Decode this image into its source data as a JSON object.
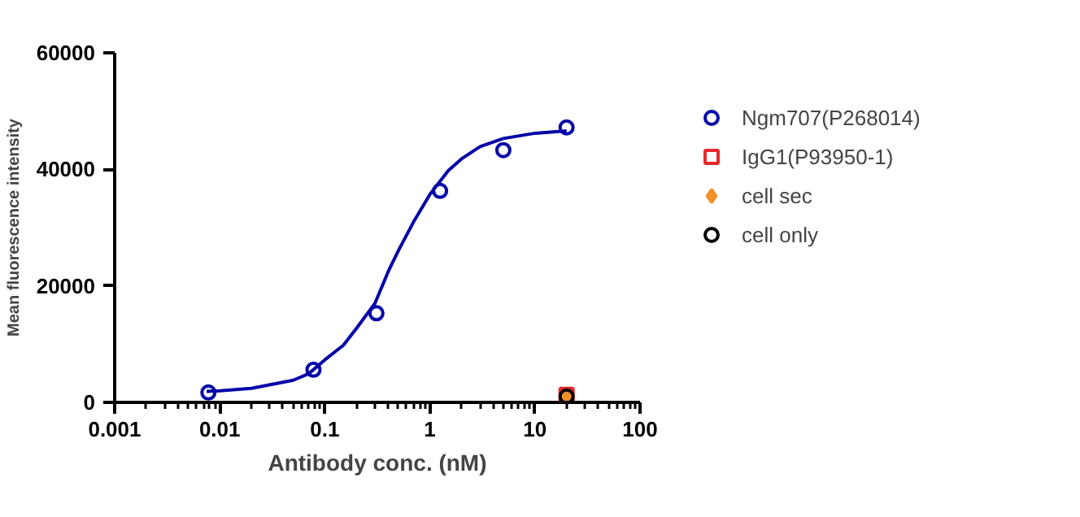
{
  "chart_data": {
    "type": "scatter",
    "xlabel": "Antibody conc. (nM)",
    "ylabel": "Mean fluorescence intensity",
    "log": "x",
    "xlim": [
      0.001,
      100
    ],
    "xticks": [
      0.001,
      0.01,
      0.1,
      1,
      10,
      100
    ],
    "ylim": [
      0,
      60000
    ],
    "yticks": [
      0,
      20000,
      40000,
      60000
    ],
    "grid": false,
    "legend": "right",
    "series": [
      {
        "type": "line",
        "color": "#0000a8",
        "line_style": "solid",
        "marker": "none",
        "x": [
          0.0075,
          0.01,
          0.02,
          0.05,
          0.07,
          0.1,
          0.15,
          0.2,
          0.3,
          0.4,
          0.5,
          0.7,
          1,
          1.5,
          2,
          3,
          5,
          10,
          20
        ],
        "values": [
          1900,
          2000,
          2400,
          3800,
          4900,
          7300,
          9800,
          12700,
          17000,
          22400,
          26000,
          31000,
          35700,
          39800,
          41800,
          43900,
          45300,
          46200,
          46600
        ]
      },
      {
        "name": "Ngm707(P268014)",
        "color": "#0000a8",
        "marker": "circle",
        "x": [
          0.0078,
          0.078,
          0.31,
          1.25,
          5,
          20
        ],
        "values": [
          1700,
          5600,
          15300,
          36300,
          43300,
          47200
        ]
      },
      {
        "name": "IgG1(P93950-1)",
        "color": "#e8282a",
        "marker": "square",
        "x": [
          20
        ],
        "values": [
          1300
        ]
      },
      {
        "name": "cell sec",
        "color": "#f0922a",
        "marker": "diamond",
        "x": [
          20
        ],
        "values": [
          1000
        ]
      },
      {
        "name": "cell only",
        "color": "#000000",
        "marker": "circle",
        "x": [
          20
        ],
        "values": [
          1000
        ]
      }
    ]
  }
}
